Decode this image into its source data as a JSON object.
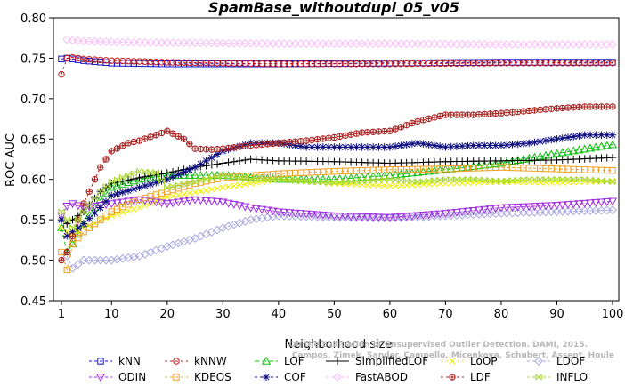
{
  "chart_data": {
    "type": "line",
    "title": "SpamBase_withoutdupl_05_v05",
    "xlabel": "Neighborhood size",
    "ylabel": "ROC AUC",
    "xlim": [
      1,
      100
    ],
    "ylim": [
      0.45,
      0.8
    ],
    "xticks": [
      1,
      10,
      20,
      30,
      40,
      50,
      60,
      70,
      80,
      90,
      100
    ],
    "xtick_labels": [
      "1",
      "10",
      "20",
      "30",
      "40",
      "50",
      "60",
      "70",
      "80",
      "90",
      "100"
    ],
    "yticks": [
      0.45,
      0.5,
      0.55,
      0.6,
      0.65,
      0.7,
      0.75,
      0.8
    ],
    "ytick_labels": [
      "0.45",
      "0.50",
      "0.55",
      "0.60",
      "0.65",
      "0.70",
      "0.75",
      "0.80"
    ],
    "grid": false,
    "legend_position": "bottom",
    "watermark": [
      "Campos, Zimek, Sander, Campello, Micenkova, Schubert, Assent, Houle",
      "On the Evaluation of Unsupervised Outlier Detection. DAMI, 2015."
    ],
    "series": [
      {
        "name": "kNN",
        "color": "#1515c8",
        "marker": "square",
        "dash": "3,3",
        "points": [
          [
            1,
            0.749
          ],
          [
            2,
            0.75
          ],
          [
            3,
            0.749
          ],
          [
            5,
            0.747
          ],
          [
            10,
            0.744
          ],
          [
            20,
            0.743
          ],
          [
            40,
            0.743
          ],
          [
            60,
            0.744
          ],
          [
            80,
            0.745
          ],
          [
            100,
            0.745
          ]
        ]
      },
      {
        "name": "kNNW",
        "color": "#c81818",
        "marker": "circle",
        "dash": "3,3",
        "points": [
          [
            1,
            0.73
          ],
          [
            2,
            0.75
          ],
          [
            3,
            0.751
          ],
          [
            5,
            0.749
          ],
          [
            10,
            0.747
          ],
          [
            20,
            0.745
          ],
          [
            40,
            0.743
          ],
          [
            60,
            0.743
          ],
          [
            80,
            0.744
          ],
          [
            100,
            0.744
          ]
        ]
      },
      {
        "name": "LOF",
        "color": "#10c010",
        "marker": "triangle",
        "dash": "5,3",
        "points": [
          [
            1,
            0.54
          ],
          [
            2,
            0.51
          ],
          [
            3,
            0.52
          ],
          [
            5,
            0.545
          ],
          [
            8,
            0.575
          ],
          [
            10,
            0.59
          ],
          [
            15,
            0.6
          ],
          [
            20,
            0.605
          ],
          [
            30,
            0.605
          ],
          [
            40,
            0.6
          ],
          [
            50,
            0.6
          ],
          [
            60,
            0.605
          ],
          [
            70,
            0.612
          ],
          [
            80,
            0.62
          ],
          [
            90,
            0.632
          ],
          [
            100,
            0.643
          ]
        ]
      },
      {
        "name": "SimplifiedLOF",
        "color": "#000000",
        "marker": "plus",
        "dash": "",
        "points": [
          [
            1,
            0.55
          ],
          [
            2,
            0.545
          ],
          [
            3,
            0.55
          ],
          [
            5,
            0.56
          ],
          [
            8,
            0.585
          ],
          [
            10,
            0.595
          ],
          [
            15,
            0.602
          ],
          [
            20,
            0.608
          ],
          [
            25,
            0.615
          ],
          [
            30,
            0.62
          ],
          [
            35,
            0.625
          ],
          [
            40,
            0.623
          ],
          [
            50,
            0.622
          ],
          [
            60,
            0.62
          ],
          [
            70,
            0.622
          ],
          [
            80,
            0.623
          ],
          [
            90,
            0.624
          ],
          [
            100,
            0.627
          ]
        ]
      },
      {
        "name": "LoOP",
        "color": "#f0f000",
        "marker": "x",
        "dash": "3,3",
        "points": [
          [
            1,
            0.54
          ],
          [
            3,
            0.53
          ],
          [
            5,
            0.54
          ],
          [
            10,
            0.555
          ],
          [
            15,
            0.565
          ],
          [
            20,
            0.578
          ],
          [
            30,
            0.59
          ],
          [
            40,
            0.6
          ],
          [
            50,
            0.595
          ],
          [
            60,
            0.592
          ],
          [
            70,
            0.595
          ],
          [
            80,
            0.597
          ],
          [
            90,
            0.596
          ],
          [
            100,
            0.598
          ]
        ]
      },
      {
        "name": "LDOF",
        "color": "#a8a8e0",
        "marker": "diamond",
        "dash": "3,3",
        "points": [
          [
            2,
            0.505
          ],
          [
            3,
            0.49
          ],
          [
            5,
            0.5
          ],
          [
            10,
            0.5
          ],
          [
            15,
            0.505
          ],
          [
            20,
            0.517
          ],
          [
            25,
            0.527
          ],
          [
            30,
            0.54
          ],
          [
            35,
            0.55
          ],
          [
            40,
            0.555
          ],
          [
            50,
            0.553
          ],
          [
            60,
            0.552
          ],
          [
            70,
            0.555
          ],
          [
            80,
            0.558
          ],
          [
            90,
            0.56
          ],
          [
            100,
            0.562
          ]
        ]
      },
      {
        "name": "ODIN",
        "color": "#a030e0",
        "marker": "triangle-down",
        "dash": "3,3",
        "points": [
          [
            1,
            0.555
          ],
          [
            2,
            0.567
          ],
          [
            3,
            0.57
          ],
          [
            5,
            0.565
          ],
          [
            10,
            0.57
          ],
          [
            15,
            0.575
          ],
          [
            20,
            0.57
          ],
          [
            25,
            0.575
          ],
          [
            30,
            0.572
          ],
          [
            35,
            0.565
          ],
          [
            40,
            0.56
          ],
          [
            50,
            0.555
          ],
          [
            60,
            0.553
          ],
          [
            70,
            0.558
          ],
          [
            80,
            0.565
          ],
          [
            90,
            0.568
          ],
          [
            100,
            0.573
          ]
        ]
      },
      {
        "name": "KDEOS",
        "color": "#f0a020",
        "marker": "square",
        "dash": "3,3",
        "points": [
          [
            1,
            0.51
          ],
          [
            2,
            0.488
          ],
          [
            3,
            0.52
          ],
          [
            5,
            0.535
          ],
          [
            8,
            0.55
          ],
          [
            10,
            0.56
          ],
          [
            15,
            0.575
          ],
          [
            20,
            0.585
          ],
          [
            25,
            0.595
          ],
          [
            30,
            0.602
          ],
          [
            40,
            0.607
          ],
          [
            50,
            0.61
          ],
          [
            60,
            0.612
          ],
          [
            70,
            0.613
          ],
          [
            80,
            0.615
          ],
          [
            90,
            0.613
          ],
          [
            100,
            0.611
          ]
        ]
      },
      {
        "name": "COF",
        "color": "#0c0c80",
        "marker": "star",
        "dash": "3,3",
        "points": [
          [
            1,
            0.55
          ],
          [
            2,
            0.53
          ],
          [
            3,
            0.535
          ],
          [
            5,
            0.545
          ],
          [
            8,
            0.565
          ],
          [
            10,
            0.58
          ],
          [
            15,
            0.59
          ],
          [
            20,
            0.6
          ],
          [
            25,
            0.615
          ],
          [
            30,
            0.635
          ],
          [
            35,
            0.645
          ],
          [
            40,
            0.645
          ],
          [
            45,
            0.64
          ],
          [
            50,
            0.64
          ],
          [
            55,
            0.64
          ],
          [
            60,
            0.64
          ],
          [
            65,
            0.645
          ],
          [
            70,
            0.64
          ],
          [
            75,
            0.642
          ],
          [
            80,
            0.642
          ],
          [
            85,
            0.645
          ],
          [
            90,
            0.65
          ],
          [
            95,
            0.655
          ],
          [
            100,
            0.655
          ]
        ]
      },
      {
        "name": "FastABOD",
        "color": "#f8c0f8",
        "marker": "diamond",
        "dash": "3,3",
        "points": [
          [
            2,
            0.773
          ],
          [
            3,
            0.772
          ],
          [
            5,
            0.771
          ],
          [
            10,
            0.77
          ],
          [
            20,
            0.769
          ],
          [
            40,
            0.768
          ],
          [
            60,
            0.768
          ],
          [
            80,
            0.767
          ],
          [
            100,
            0.767
          ]
        ]
      },
      {
        "name": "LDF",
        "color": "#a82020",
        "marker": "circle-plus",
        "dash": "3,3",
        "points": [
          [
            1,
            0.5
          ],
          [
            2,
            0.51
          ],
          [
            3,
            0.53
          ],
          [
            5,
            0.57
          ],
          [
            7,
            0.6
          ],
          [
            8,
            0.615
          ],
          [
            10,
            0.635
          ],
          [
            13,
            0.645
          ],
          [
            15,
            0.648
          ],
          [
            18,
            0.655
          ],
          [
            20,
            0.66
          ],
          [
            23,
            0.65
          ],
          [
            25,
            0.638
          ],
          [
            28,
            0.637
          ],
          [
            30,
            0.638
          ],
          [
            35,
            0.642
          ],
          [
            40,
            0.645
          ],
          [
            45,
            0.648
          ],
          [
            50,
            0.652
          ],
          [
            55,
            0.658
          ],
          [
            60,
            0.66
          ],
          [
            65,
            0.672
          ],
          [
            70,
            0.68
          ],
          [
            75,
            0.68
          ],
          [
            80,
            0.682
          ],
          [
            85,
            0.685
          ],
          [
            90,
            0.688
          ],
          [
            95,
            0.69
          ],
          [
            100,
            0.69
          ]
        ]
      },
      {
        "name": "INFLO",
        "color": "#a8d830",
        "marker": "hourglass",
        "dash": "3,3",
        "points": [
          [
            1,
            0.56
          ],
          [
            2,
            0.55
          ],
          [
            3,
            0.54
          ],
          [
            5,
            0.56
          ],
          [
            8,
            0.585
          ],
          [
            10,
            0.597
          ],
          [
            13,
            0.605
          ],
          [
            15,
            0.61
          ],
          [
            18,
            0.608
          ],
          [
            20,
            0.59
          ],
          [
            25,
            0.597
          ],
          [
            30,
            0.605
          ],
          [
            35,
            0.6
          ],
          [
            40,
            0.6
          ],
          [
            45,
            0.597
          ],
          [
            50,
            0.596
          ],
          [
            55,
            0.598
          ],
          [
            60,
            0.6
          ],
          [
            65,
            0.597
          ],
          [
            70,
            0.6
          ],
          [
            75,
            0.6
          ],
          [
            80,
            0.598
          ],
          [
            85,
            0.6
          ],
          [
            90,
            0.6
          ],
          [
            95,
            0.6
          ],
          [
            100,
            0.597
          ]
        ]
      }
    ],
    "legend_rows": [
      [
        "kNN",
        "kNNW",
        "LOF",
        "SimplifiedLOF",
        "LoOP",
        "LDOF"
      ],
      [
        "ODIN",
        "KDEOS",
        "COF",
        "FastABOD",
        "LDF",
        "INFLO"
      ]
    ]
  }
}
